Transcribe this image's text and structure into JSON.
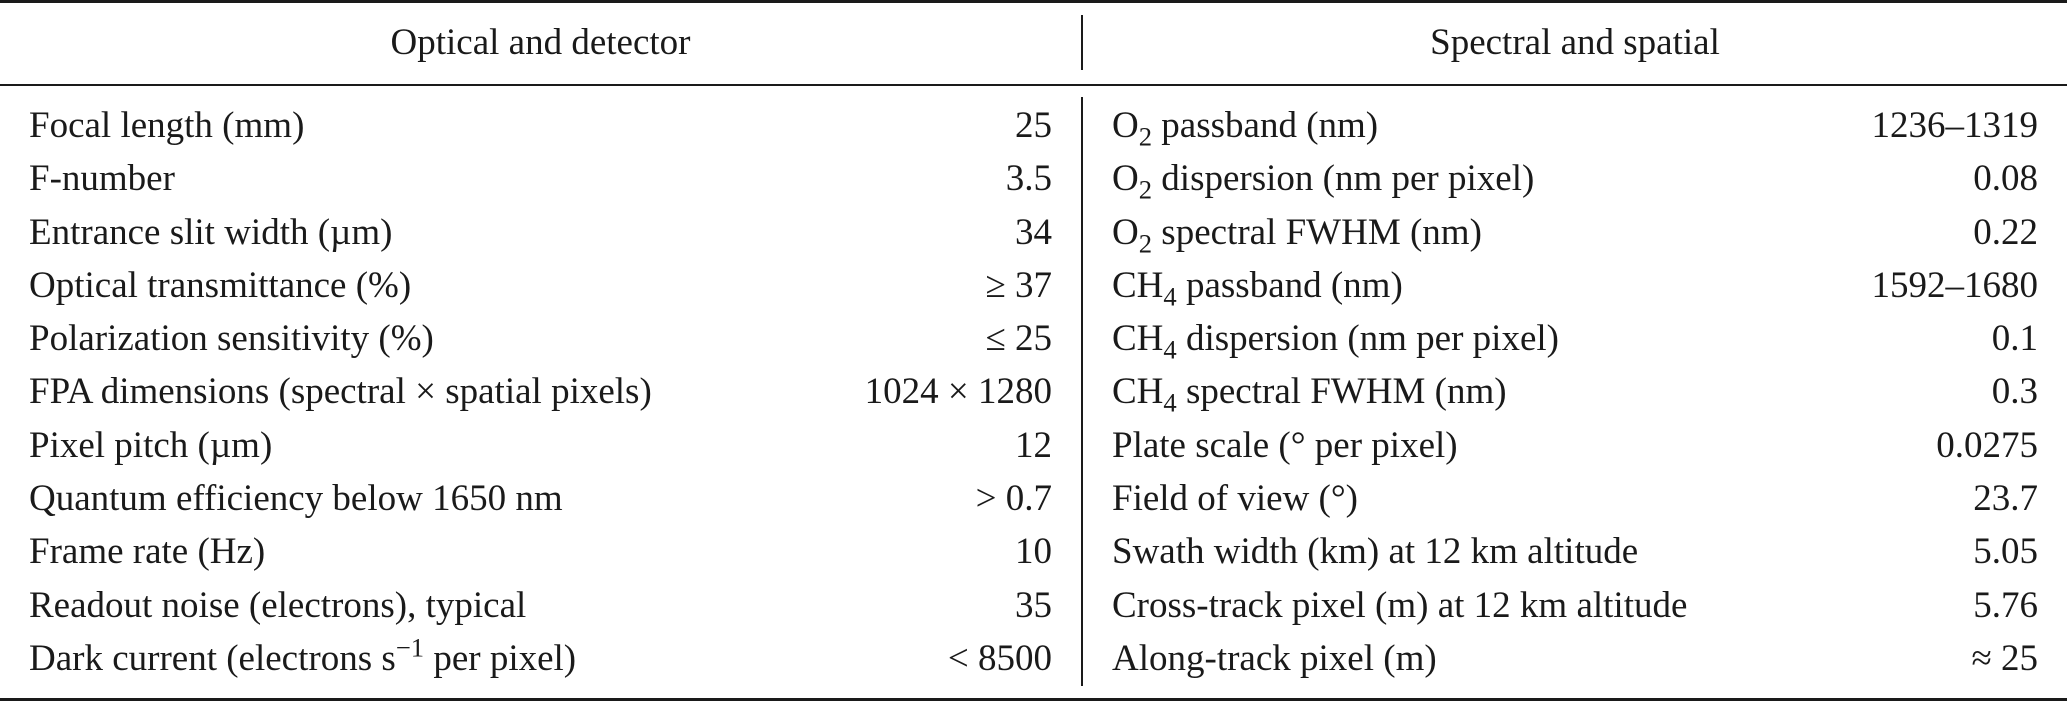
{
  "headers": {
    "left": "Optical and detector",
    "right": "Spectral and spatial"
  },
  "left_rows": [
    {
      "label": "Focal length (mm)",
      "value": "25"
    },
    {
      "label": "F-number",
      "value": "3.5"
    },
    {
      "label": "Entrance slit width (µm)",
      "value": "34"
    },
    {
      "label": "Optical transmittance (%)",
      "value": "≥ 37"
    },
    {
      "label": "Polarization sensitivity (%)",
      "value": "≤ 25"
    },
    {
      "label": "FPA dimensions (spectral × spatial pixels)",
      "value": "1024 × 1280"
    },
    {
      "label": "Pixel pitch (µm)",
      "value": "12"
    },
    {
      "label": "Quantum efficiency below 1650 nm",
      "value": "> 0.7"
    },
    {
      "label": "Frame rate (Hz)",
      "value": "10"
    },
    {
      "label": "Readout noise (electrons), typical",
      "value": "35"
    },
    {
      "label_pre": "Dark current (electrons s",
      "label_sup": "−1",
      "label_post": " per pixel)",
      "value": "< 8500"
    }
  ],
  "right_rows": [
    {
      "label_pre": "O",
      "label_sub": "2",
      "label_post": " passband (nm)",
      "value": "1236–1319"
    },
    {
      "label_pre": "O",
      "label_sub": "2",
      "label_post": " dispersion (nm per pixel)",
      "value": "0.08"
    },
    {
      "label_pre": "O",
      "label_sub": "2",
      "label_post": " spectral FWHM (nm)",
      "value": "0.22"
    },
    {
      "label_pre": "CH",
      "label_sub": "4",
      "label_post": " passband (nm)",
      "value": "1592–1680"
    },
    {
      "label_pre": "CH",
      "label_sub": "4",
      "label_post": " dispersion (nm per pixel)",
      "value": "0.1"
    },
    {
      "label_pre": "CH",
      "label_sub": "4",
      "label_post": " spectral FWHM (nm)",
      "value": "0.3"
    },
    {
      "label": "Plate scale (° per pixel)",
      "value": "0.0275"
    },
    {
      "label": "Field of view (°)",
      "value": "23.7"
    },
    {
      "label": "Swath width (km) at 12 km altitude",
      "value": "5.05"
    },
    {
      "label": "Cross-track pixel (m) at 12 km altitude",
      "value": "5.76"
    },
    {
      "label": "Along-track pixel (m)",
      "value": "≈ 25"
    }
  ]
}
